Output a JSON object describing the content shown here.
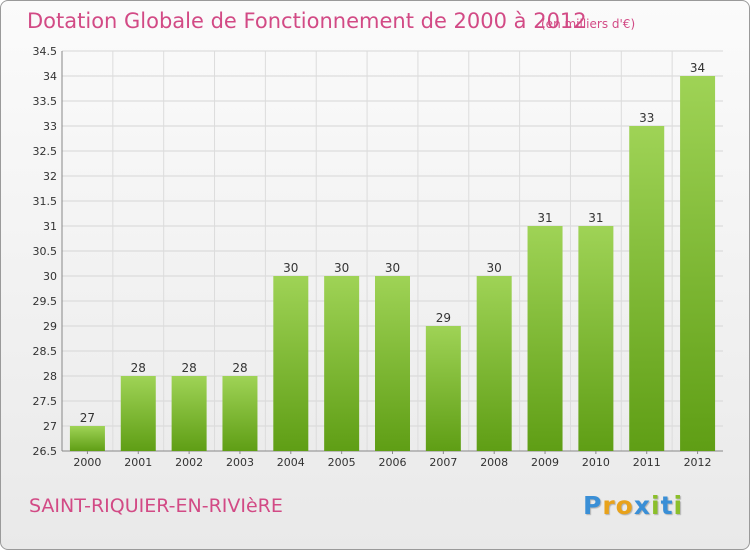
{
  "title": "Dotation Globale de Fonctionnement de 2000 à 2012",
  "subtitle": "(en milliers d'€)",
  "commune": "SAINT-RIQUIER-EN-RIVIèRE",
  "logo": {
    "text": "Proxiti",
    "letters": [
      "P",
      "r",
      "o",
      "x",
      "i",
      "t",
      "i"
    ],
    "colors": [
      "#3a8fd6",
      "#e8a21b",
      "#e8a21b",
      "#3a8fd6",
      "#8bbf2a",
      "#3a8fd6",
      "#8bbf2a"
    ]
  },
  "colors": {
    "bar_light": "#9fd356",
    "bar_dark": "#5f9e15",
    "accent": "#d24a85"
  },
  "chart_data": {
    "type": "bar",
    "categories": [
      "2000",
      "2001",
      "2002",
      "2003",
      "2004",
      "2005",
      "2006",
      "2007",
      "2008",
      "2009",
      "2010",
      "2011",
      "2012"
    ],
    "values": [
      27,
      28,
      28,
      28,
      30,
      30,
      30,
      29,
      30,
      31,
      31,
      33,
      34
    ],
    "data_labels": [
      "27",
      "28",
      "28",
      "28",
      "30",
      "30",
      "30",
      "29",
      "30",
      "31",
      "31",
      "33",
      "34"
    ],
    "yticks": [
      "26.5",
      "27",
      "27.5",
      "28",
      "28.5",
      "29",
      "29.5",
      "30",
      "30.5",
      "31",
      "31.5",
      "32",
      "32.5",
      "33",
      "33.5",
      "34",
      "34.5"
    ],
    "ylim": [
      26.5,
      34.5
    ],
    "grid": true,
    "title": "Dotation Globale de Fonctionnement de 2000 à 2012",
    "xlabel": "",
    "ylabel": ""
  }
}
